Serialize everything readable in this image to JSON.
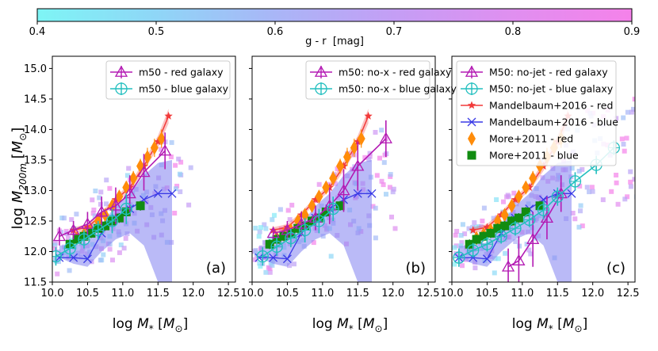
{
  "colorbar": {
    "label": "g - r  [mag]",
    "min": 0.4,
    "max": 0.9,
    "ticks": [
      "0.4",
      "0.5",
      "0.6",
      "0.7",
      "0.8",
      "0.9"
    ],
    "colors": [
      "#7ef5f5",
      "#8fd6f7",
      "#a9b6f7",
      "#c49ef5",
      "#e08ff0",
      "#f582ea"
    ]
  },
  "styles": {
    "red_sim": "#b31ab3",
    "blue_sim": "#22bfbf",
    "mand_red": "#f23a3a",
    "mand_blue": "#3a3ae6",
    "more_red": "#ff8c0a",
    "more_blue": "#118c11",
    "band_blue": "#8c8cf2"
  },
  "chart_data": [
    {
      "type": "line",
      "panel_label": "(a)",
      "xlabel": "log M_* [M_⊙]",
      "ylabel": "log M_200m [M_⊙]",
      "xlim": [
        10.0,
        12.6
      ],
      "ylim": [
        11.5,
        15.2
      ],
      "xticks": [
        "10.0",
        "10.5",
        "11.0",
        "11.5",
        "12.0",
        "12.5"
      ],
      "yticks": [
        "11.5",
        "12.0",
        "12.5",
        "13.0",
        "13.5",
        "14.0",
        "14.5",
        "15.0"
      ],
      "legend": [
        "m50 - red galaxy",
        "m50 - blue galaxy"
      ],
      "series": [
        {
          "name": "m50 - red galaxy",
          "role": "red",
          "x": [
            10.1,
            10.3,
            10.5,
            10.7,
            10.9,
            11.1,
            11.3,
            11.6
          ],
          "y": [
            12.25,
            12.35,
            12.45,
            12.65,
            12.75,
            12.95,
            13.3,
            13.65
          ],
          "err": [
            0.15,
            0.15,
            0.2,
            0.25,
            0.3,
            0.3,
            0.3,
            0.3
          ]
        },
        {
          "name": "m50 - blue galaxy",
          "role": "blue",
          "x": [
            10.05,
            10.25,
            10.45,
            10.65,
            10.85,
            11.05
          ],
          "y": [
            11.92,
            12.05,
            12.2,
            12.35,
            12.5,
            12.7
          ],
          "err": [
            0.15,
            0.15,
            0.15,
            0.15,
            0.2,
            0.25
          ]
        }
      ]
    },
    {
      "type": "line",
      "panel_label": "(b)",
      "xlabel": "log M_* [M_⊙]",
      "xlim": [
        10.0,
        12.6
      ],
      "ylim": [
        11.5,
        15.2
      ],
      "xticks": [
        "10.0",
        "10.5",
        "11.0",
        "11.5",
        "12.0",
        "12.5"
      ],
      "legend": [
        "m50: no-x - red galaxy",
        "m50: no-x - blue galaxy"
      ],
      "series": [
        {
          "name": "m50: no-x - red galaxy",
          "role": "red",
          "x": [
            10.3,
            10.5,
            10.7,
            10.9,
            11.1,
            11.3,
            11.5,
            11.9
          ],
          "y": [
            12.3,
            12.35,
            12.45,
            12.55,
            12.75,
            13.0,
            13.4,
            13.85
          ],
          "err": [
            0.1,
            0.15,
            0.2,
            0.2,
            0.3,
            0.35,
            0.4,
            0.3
          ]
        },
        {
          "name": "m50: no-x - blue galaxy",
          "role": "blue",
          "x": [
            10.15,
            10.35,
            10.55,
            10.75,
            10.95,
            11.15
          ],
          "y": [
            11.92,
            12.08,
            12.22,
            12.35,
            12.5,
            12.7
          ],
          "err": [
            0.15,
            0.15,
            0.15,
            0.2,
            0.2,
            0.2
          ]
        }
      ]
    },
    {
      "type": "line",
      "panel_label": "(c)",
      "xlabel": "log M_* [M_⊙]",
      "xlim": [
        10.0,
        12.6
      ],
      "ylim": [
        11.5,
        15.2
      ],
      "xticks": [
        "10.0",
        "10.5",
        "11.0",
        "11.5",
        "12.0",
        "12.5"
      ],
      "legend": [
        "M50: no-jet - red galaxy",
        "M50: no-jet - blue galaxy",
        "Mandelbaum+2016 - red",
        "Mandelbaum+2016 - blue",
        "More+2011 - red",
        "More+2011 - blue"
      ],
      "series": [
        {
          "name": "M50: no-jet - red galaxy",
          "role": "red",
          "x": [
            10.8,
            10.95,
            11.15,
            11.35,
            11.55
          ],
          "y": [
            11.75,
            11.85,
            12.2,
            12.55,
            12.95
          ],
          "err": [
            0.3,
            0.4,
            0.45,
            0.35,
            0.3
          ]
        },
        {
          "name": "M50: no-jet - blue galaxy",
          "role": "blue",
          "x": [
            10.1,
            10.3,
            10.5,
            10.7,
            10.9,
            11.1,
            11.3,
            11.5,
            11.75,
            12.05,
            12.3
          ],
          "y": [
            11.9,
            12.02,
            12.12,
            12.25,
            12.38,
            12.52,
            12.68,
            12.9,
            13.15,
            13.42,
            13.7
          ],
          "err": [
            0.15,
            0.12,
            0.12,
            0.12,
            0.12,
            0.12,
            0.15,
            0.15,
            0.15,
            0.15,
            0.12
          ]
        }
      ]
    }
  ],
  "references": {
    "mand_red": {
      "name": "Mandelbaum+2016 - red",
      "x": [
        10.3,
        10.5,
        10.7,
        10.9,
        11.1,
        11.3,
        11.5,
        11.65
      ],
      "y": [
        12.35,
        12.4,
        12.6,
        12.85,
        13.05,
        13.4,
        13.8,
        14.22
      ],
      "err": [
        0.05,
        0.05,
        0.05,
        0.05,
        0.06,
        0.08,
        0.1,
        0.12
      ]
    },
    "mand_blue": {
      "name": "Mandelbaum+2016 - blue",
      "x": [
        10.1,
        10.3,
        10.5,
        10.7,
        10.9,
        11.1,
        11.3,
        11.5,
        11.7
      ],
      "y": [
        11.9,
        11.9,
        11.88,
        12.3,
        12.55,
        12.7,
        12.85,
        12.95,
        12.95
      ],
      "band_lo": [
        11.9,
        11.8,
        11.75,
        12.0,
        12.2,
        12.3,
        12.1,
        11.5,
        11.4
      ],
      "band_hi": [
        12.1,
        12.1,
        12.15,
        12.45,
        12.75,
        12.95,
        13.25,
        13.45,
        13.5
      ]
    },
    "more_red": {
      "name": "More+2011 - red",
      "x": [
        10.35,
        10.45,
        10.55,
        10.65,
        10.75,
        10.85,
        10.95,
        11.05,
        11.15,
        11.25,
        11.35,
        11.45,
        11.55
      ],
      "y": [
        12.22,
        12.28,
        12.35,
        12.5,
        12.6,
        12.75,
        12.9,
        13.05,
        13.2,
        13.4,
        13.55,
        13.7,
        13.85
      ],
      "err": [
        0.1,
        0.1,
        0.1,
        0.1,
        0.1,
        0.1,
        0.1,
        0.1,
        0.12,
        0.12,
        0.15,
        0.15,
        0.15
      ]
    },
    "more_blue": {
      "name": "More+2011 - blue",
      "x": [
        10.25,
        10.35,
        10.45,
        10.55,
        10.65,
        10.75,
        10.85,
        10.95,
        11.05,
        11.25
      ],
      "y": [
        12.12,
        12.2,
        12.25,
        12.3,
        12.38,
        12.42,
        12.5,
        12.55,
        12.65,
        12.75
      ],
      "err": [
        0.08,
        0.08,
        0.08,
        0.08,
        0.08,
        0.08,
        0.08,
        0.08,
        0.08,
        0.08
      ]
    }
  }
}
